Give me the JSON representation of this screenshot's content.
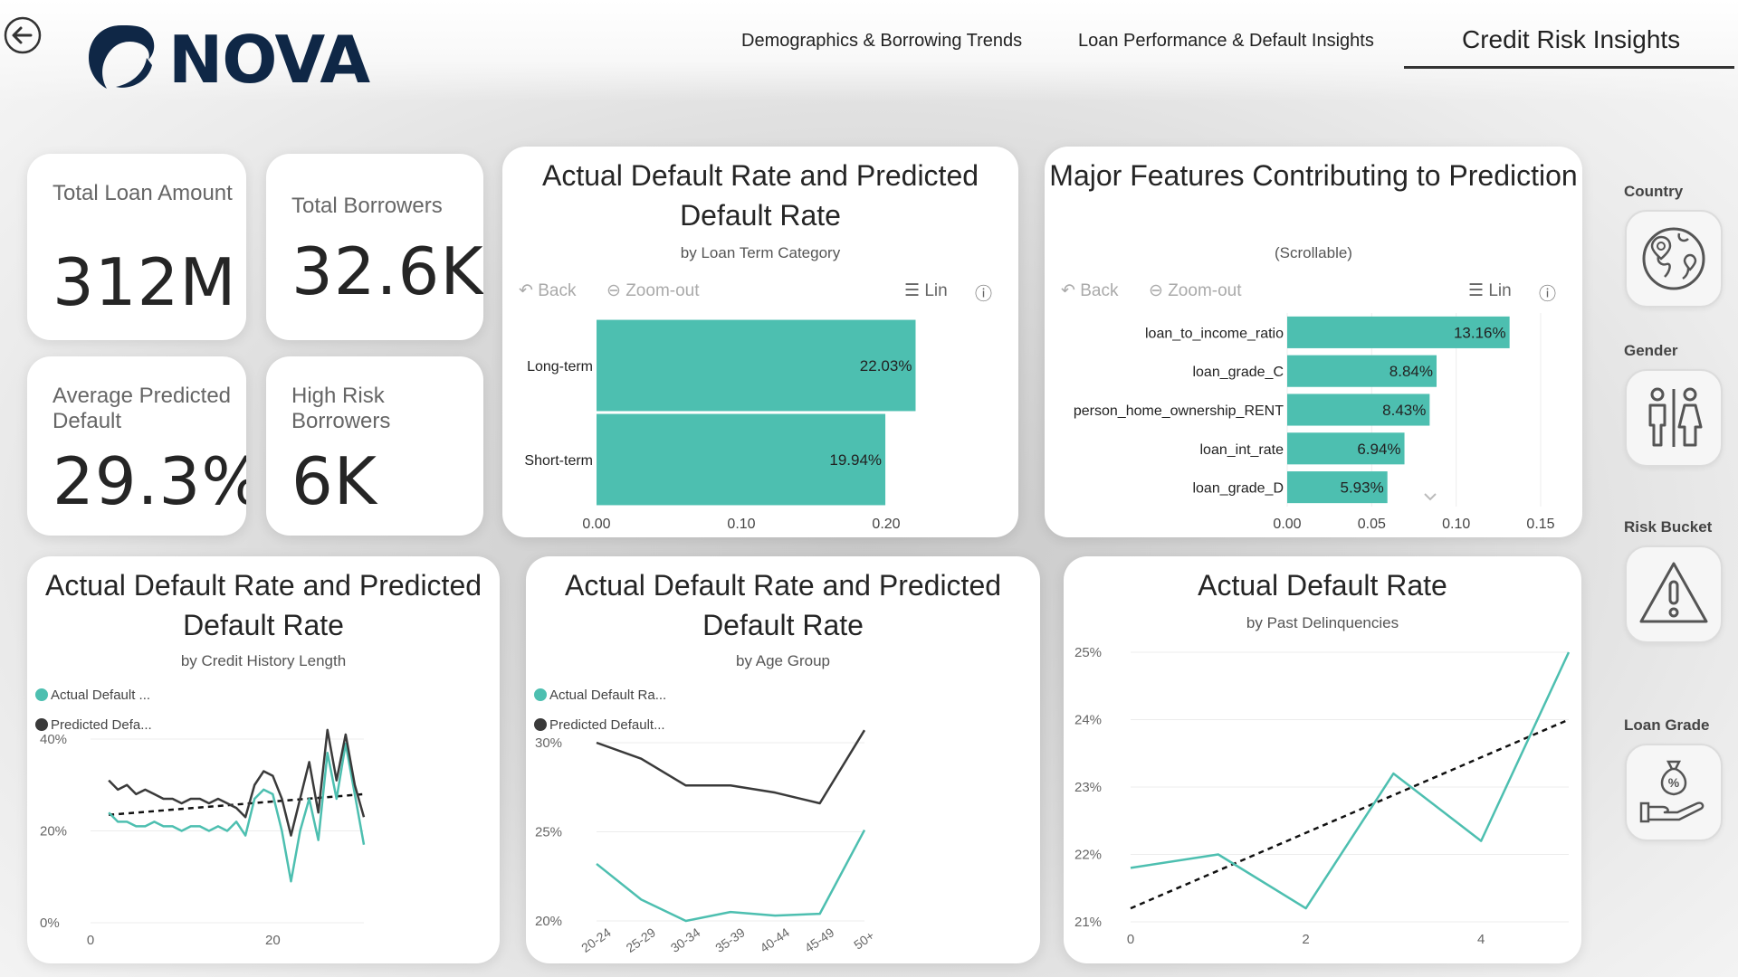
{
  "header": {
    "logo_text": "NOVA",
    "tabs": [
      {
        "label": "Demographics & Borrowing Trends",
        "active": false
      },
      {
        "label": "Loan Performance & Default Insights",
        "active": false
      },
      {
        "label": "Credit Risk Insights",
        "active": true
      }
    ]
  },
  "kpis": {
    "total_loan_amount": {
      "label": "Total Loan Amount",
      "value": "312M"
    },
    "total_borrowers": {
      "label": "Total Borrowers",
      "value": "32.6K"
    },
    "avg_predicted_default": {
      "label": "Average Predicted Default",
      "value": "29.3%"
    },
    "high_risk_borrowers": {
      "label": "High Risk Borrowers",
      "value": "6K"
    }
  },
  "toolbar": {
    "back": "Back",
    "zoom_out": "Zoom-out",
    "lin": "Lin",
    "help": "?"
  },
  "slicers": [
    {
      "label": "Country",
      "icon": "globe-icon"
    },
    {
      "label": "Gender",
      "icon": "gender-icon"
    },
    {
      "label": "Risk Bucket",
      "icon": "warning-icon"
    },
    {
      "label": "Loan Grade",
      "icon": "loan-percent-icon"
    }
  ],
  "colors": {
    "teal": "#4dbfb0",
    "dark": "#3a3a3a",
    "navy": "#0f2746"
  },
  "chart_data": [
    {
      "id": "term",
      "type": "bar",
      "orientation": "horizontal",
      "title": "Actual Default Rate and Predicted Default Rate",
      "subtitle": "by Loan Term Category",
      "categories": [
        "Long-term",
        "Short-term"
      ],
      "values": [
        0.2203,
        0.1994
      ],
      "data_labels": [
        "22.03%",
        "19.94%"
      ],
      "xticks": [
        "0.00",
        "0.10",
        "0.20"
      ],
      "xlim": [
        0,
        0.2
      ]
    },
    {
      "id": "features",
      "type": "bar",
      "orientation": "horizontal",
      "title": "Major Features Contributing to Prediction",
      "subtitle": "(Scrollable)",
      "categories": [
        "loan_to_income_ratio",
        "loan_grade_C",
        "person_home_ownership_RENT",
        "loan_int_rate",
        "loan_grade_D"
      ],
      "values": [
        0.1316,
        0.0884,
        0.0843,
        0.0694,
        0.0593
      ],
      "data_labels": [
        "13.16%",
        "8.84%",
        "8.43%",
        "6.94%",
        "5.93%"
      ],
      "xticks": [
        "0.00",
        "0.05",
        "0.10",
        "0.15"
      ],
      "xlim": [
        0,
        0.15
      ]
    },
    {
      "id": "credit_history",
      "type": "line",
      "title": "Actual Default Rate and Predicted Default Rate",
      "subtitle": "by Credit History Length",
      "legend": [
        "Actual Default ...",
        "Predicted Defa..."
      ],
      "yticks": [
        "0%",
        "20%",
        "40%"
      ],
      "xticks": [
        "0",
        "20"
      ],
      "ylim": [
        0,
        40
      ],
      "xlim": [
        0,
        30
      ],
      "x": [
        2,
        3,
        4,
        5,
        6,
        7,
        8,
        9,
        10,
        11,
        12,
        13,
        14,
        15,
        16,
        17,
        18,
        19,
        20,
        21,
        22,
        23,
        24,
        25,
        26,
        27,
        28,
        29,
        30
      ],
      "series": [
        {
          "name": "Actual Default ...",
          "values": [
            24,
            22,
            22,
            21,
            21,
            22,
            21,
            21,
            20,
            21,
            21,
            20,
            21,
            20,
            22,
            19,
            27,
            29,
            28,
            20,
            9,
            20,
            27,
            18,
            37,
            27,
            39,
            28,
            17
          ]
        },
        {
          "name": "Predicted Defa...",
          "values": [
            31,
            29,
            30,
            28,
            29,
            28,
            27,
            27,
            26,
            27,
            27,
            26,
            27,
            26,
            25,
            23,
            30,
            33,
            32,
            27,
            19,
            27,
            35,
            24,
            42,
            31,
            41,
            30,
            23
          ]
        }
      ],
      "trendline": [
        23.5,
        28
      ]
    },
    {
      "id": "age_group",
      "type": "line",
      "title": "Actual Default Rate and Predicted Default Rate",
      "subtitle": "by Age Group",
      "legend": [
        "Actual Default Ra...",
        "Predicted Default..."
      ],
      "categories": [
        "20-24",
        "25-29",
        "30-34",
        "35-39",
        "40-44",
        "45-49",
        "50+"
      ],
      "yticks": [
        "20%",
        "25%",
        "30%"
      ],
      "ylim": [
        20,
        30
      ],
      "series": [
        {
          "name": "Actual Default Ra...",
          "values": [
            23.2,
            21.2,
            20.0,
            20.5,
            20.3,
            20.4,
            25.1
          ]
        },
        {
          "name": "Predicted Default...",
          "values": [
            30.0,
            29.1,
            27.6,
            27.6,
            27.2,
            26.6,
            30.7
          ]
        }
      ]
    },
    {
      "id": "delinquencies",
      "type": "line",
      "title": "Actual Default Rate",
      "subtitle": "by Past Delinquencies",
      "yticks": [
        "21%",
        "22%",
        "23%",
        "24%",
        "25%"
      ],
      "xticks": [
        "0",
        "2",
        "4"
      ],
      "ylim": [
        21,
        25
      ],
      "xlim": [
        0,
        5
      ],
      "x": [
        0,
        1,
        2,
        3,
        4,
        5
      ],
      "series": [
        {
          "name": "",
          "values": [
            21.8,
            22.0,
            21.2,
            23.2,
            22.2,
            25.0
          ]
        }
      ],
      "trendline": [
        21.2,
        24.0
      ]
    }
  ]
}
